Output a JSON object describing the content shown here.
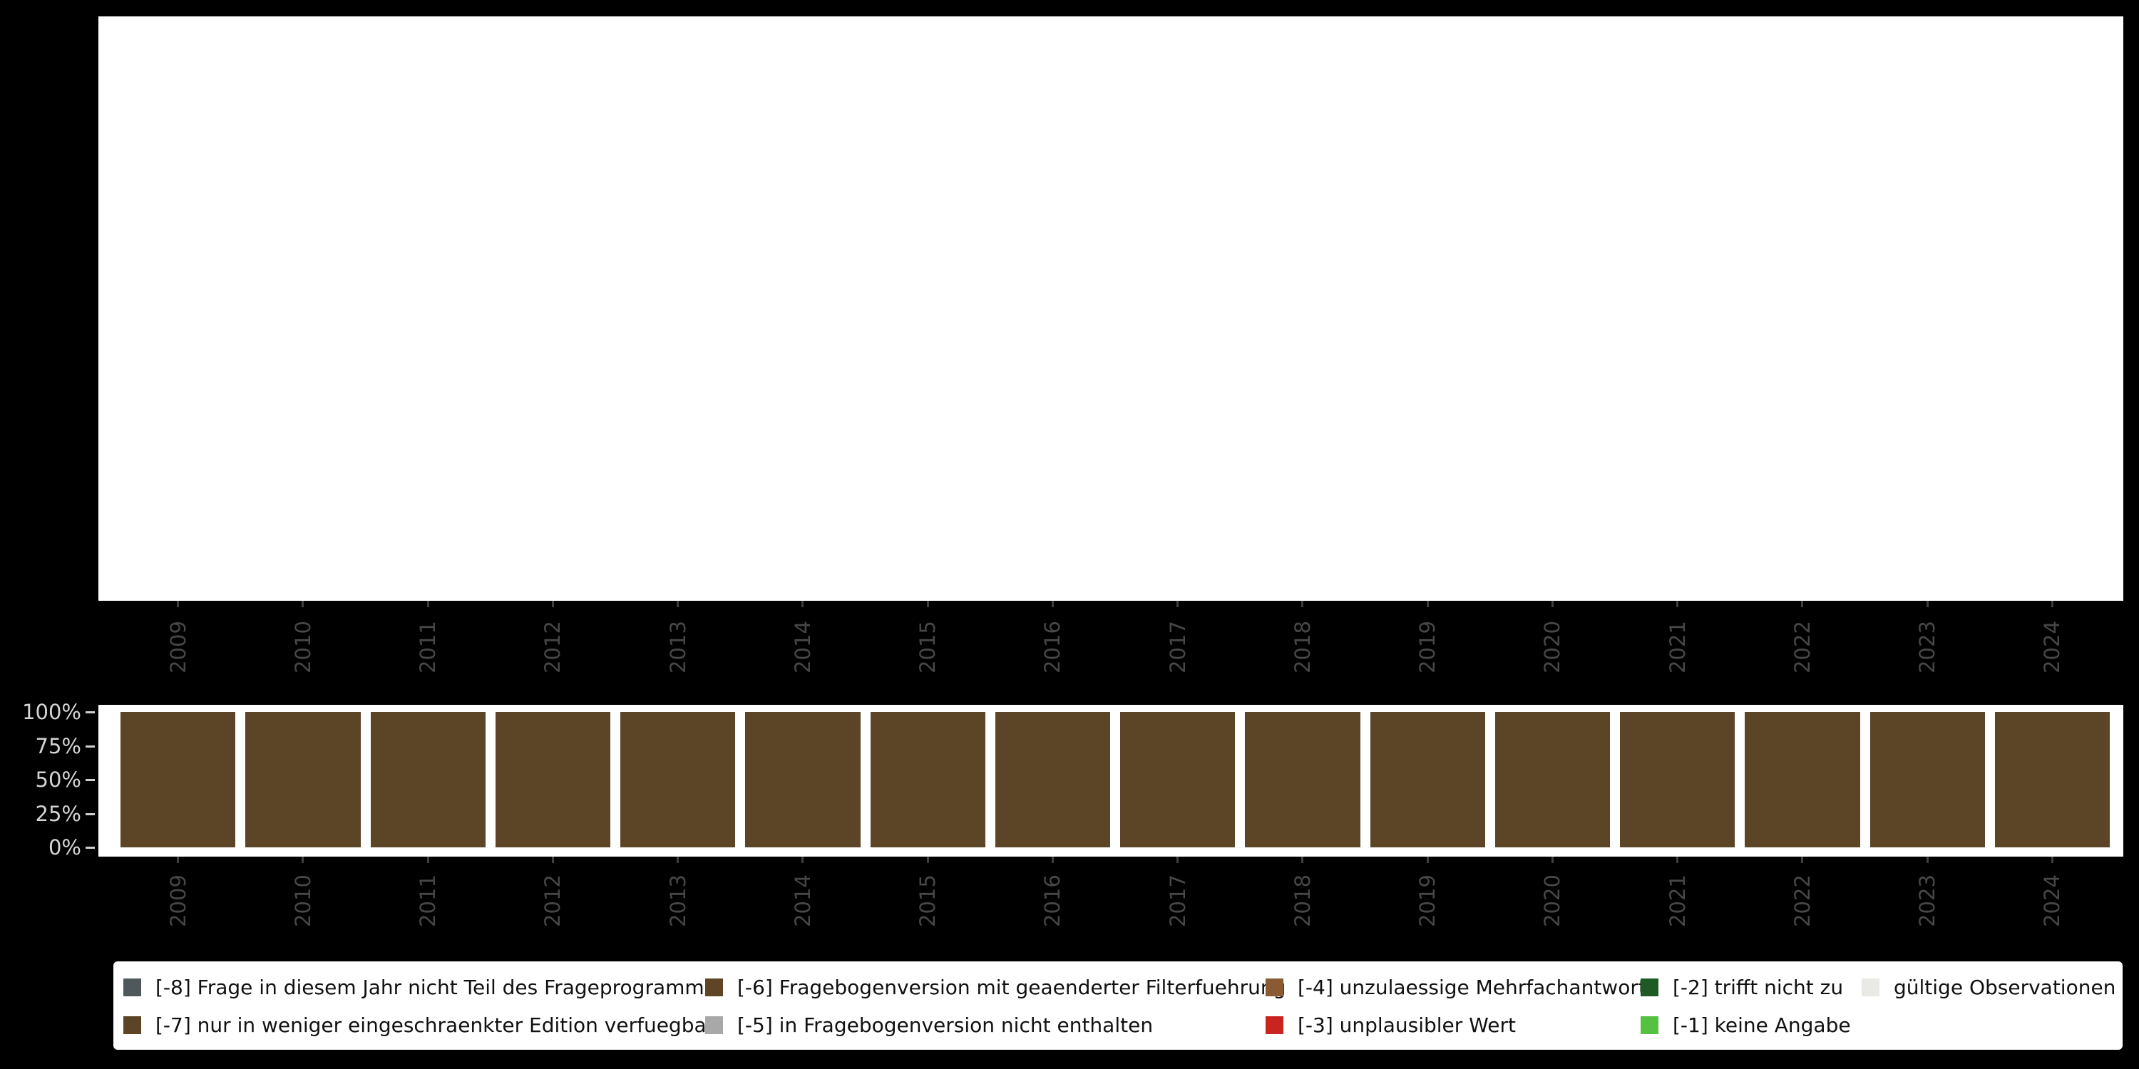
{
  "page": {
    "background": "#000000",
    "plot_background": "#ffffff"
  },
  "years": [
    "2009",
    "2010",
    "2011",
    "2012",
    "2013",
    "2014",
    "2015",
    "2016",
    "2017",
    "2018",
    "2019",
    "2020",
    "2021",
    "2022",
    "2023",
    "2024"
  ],
  "bar_chart": {
    "bar_color": "#5c4526",
    "y_ticks": [
      "100%",
      "75%",
      "50%",
      "25%",
      "0%"
    ],
    "values_percent": [
      100,
      100,
      100,
      100,
      100,
      100,
      100,
      100,
      100,
      100,
      100,
      100,
      100,
      100,
      100,
      100
    ]
  },
  "legend": {
    "row1": [
      {
        "label": "[-8] Frage in diesem Jahr nicht Teil des Frageprogramms",
        "color": "#4f585a"
      },
      {
        "label": "[-6] Fragebogenversion mit geaenderter Filterfuehrung",
        "color": "#5f4526"
      },
      {
        "label": "[-4] unzulaessige Mehrfachantwort",
        "color": "#8a5a33"
      },
      {
        "label": "[-2] trifft nicht zu",
        "color": "#1e5b24"
      },
      {
        "label": "gültige Observationen",
        "color": "#e9e9e6"
      }
    ],
    "row2": [
      {
        "label": "[-7] nur in weniger eingeschraenkter Edition verfuegbar",
        "color": "#5c4526"
      },
      {
        "label": "[-5] in Fragebogenversion nicht enthalten",
        "color": "#a8a8a8"
      },
      {
        "label": "[-3] unplausibler Wert",
        "color": "#c92420"
      },
      {
        "label": "[-1] keine Angabe",
        "color": "#54c140"
      }
    ]
  },
  "chart_data": [
    {
      "type": "bar",
      "title": "",
      "categories": [
        "2009",
        "2010",
        "2011",
        "2012",
        "2013",
        "2014",
        "2015",
        "2016",
        "2017",
        "2018",
        "2019",
        "2020",
        "2021",
        "2022",
        "2023",
        "2024"
      ],
      "series": [],
      "xlabel": "",
      "ylabel": "",
      "grid": false,
      "legend_position": "none"
    },
    {
      "type": "bar",
      "stacked": true,
      "title": "",
      "categories": [
        "2009",
        "2010",
        "2011",
        "2012",
        "2013",
        "2014",
        "2015",
        "2016",
        "2017",
        "2018",
        "2019",
        "2020",
        "2021",
        "2022",
        "2023",
        "2024"
      ],
      "series": [
        {
          "name": "[-7] nur in weniger eingeschraenkter Edition verfuegbar",
          "color": "#5c4526",
          "values": [
            100,
            100,
            100,
            100,
            100,
            100,
            100,
            100,
            100,
            100,
            100,
            100,
            100,
            100,
            100,
            100
          ]
        }
      ],
      "xlabel": "",
      "ylabel": "",
      "ylim": [
        0,
        100
      ],
      "y_tick_labels": [
        "0%",
        "25%",
        "50%",
        "75%",
        "100%"
      ],
      "grid": false,
      "legend_position": "bottom",
      "legend_entries": [
        "[-8] Frage in diesem Jahr nicht Teil des Frageprogramms",
        "[-7] nur in weniger eingeschraenkter Edition verfuegbar",
        "[-6] Fragebogenversion mit geaenderter Filterfuehrung",
        "[-5] in Fragebogenversion nicht enthalten",
        "[-4] unzulaessige Mehrfachantwort",
        "[-3] unplausibler Wert",
        "[-2] trifft nicht zu",
        "[-1] keine Angabe",
        "gültige Observationen"
      ]
    }
  ]
}
